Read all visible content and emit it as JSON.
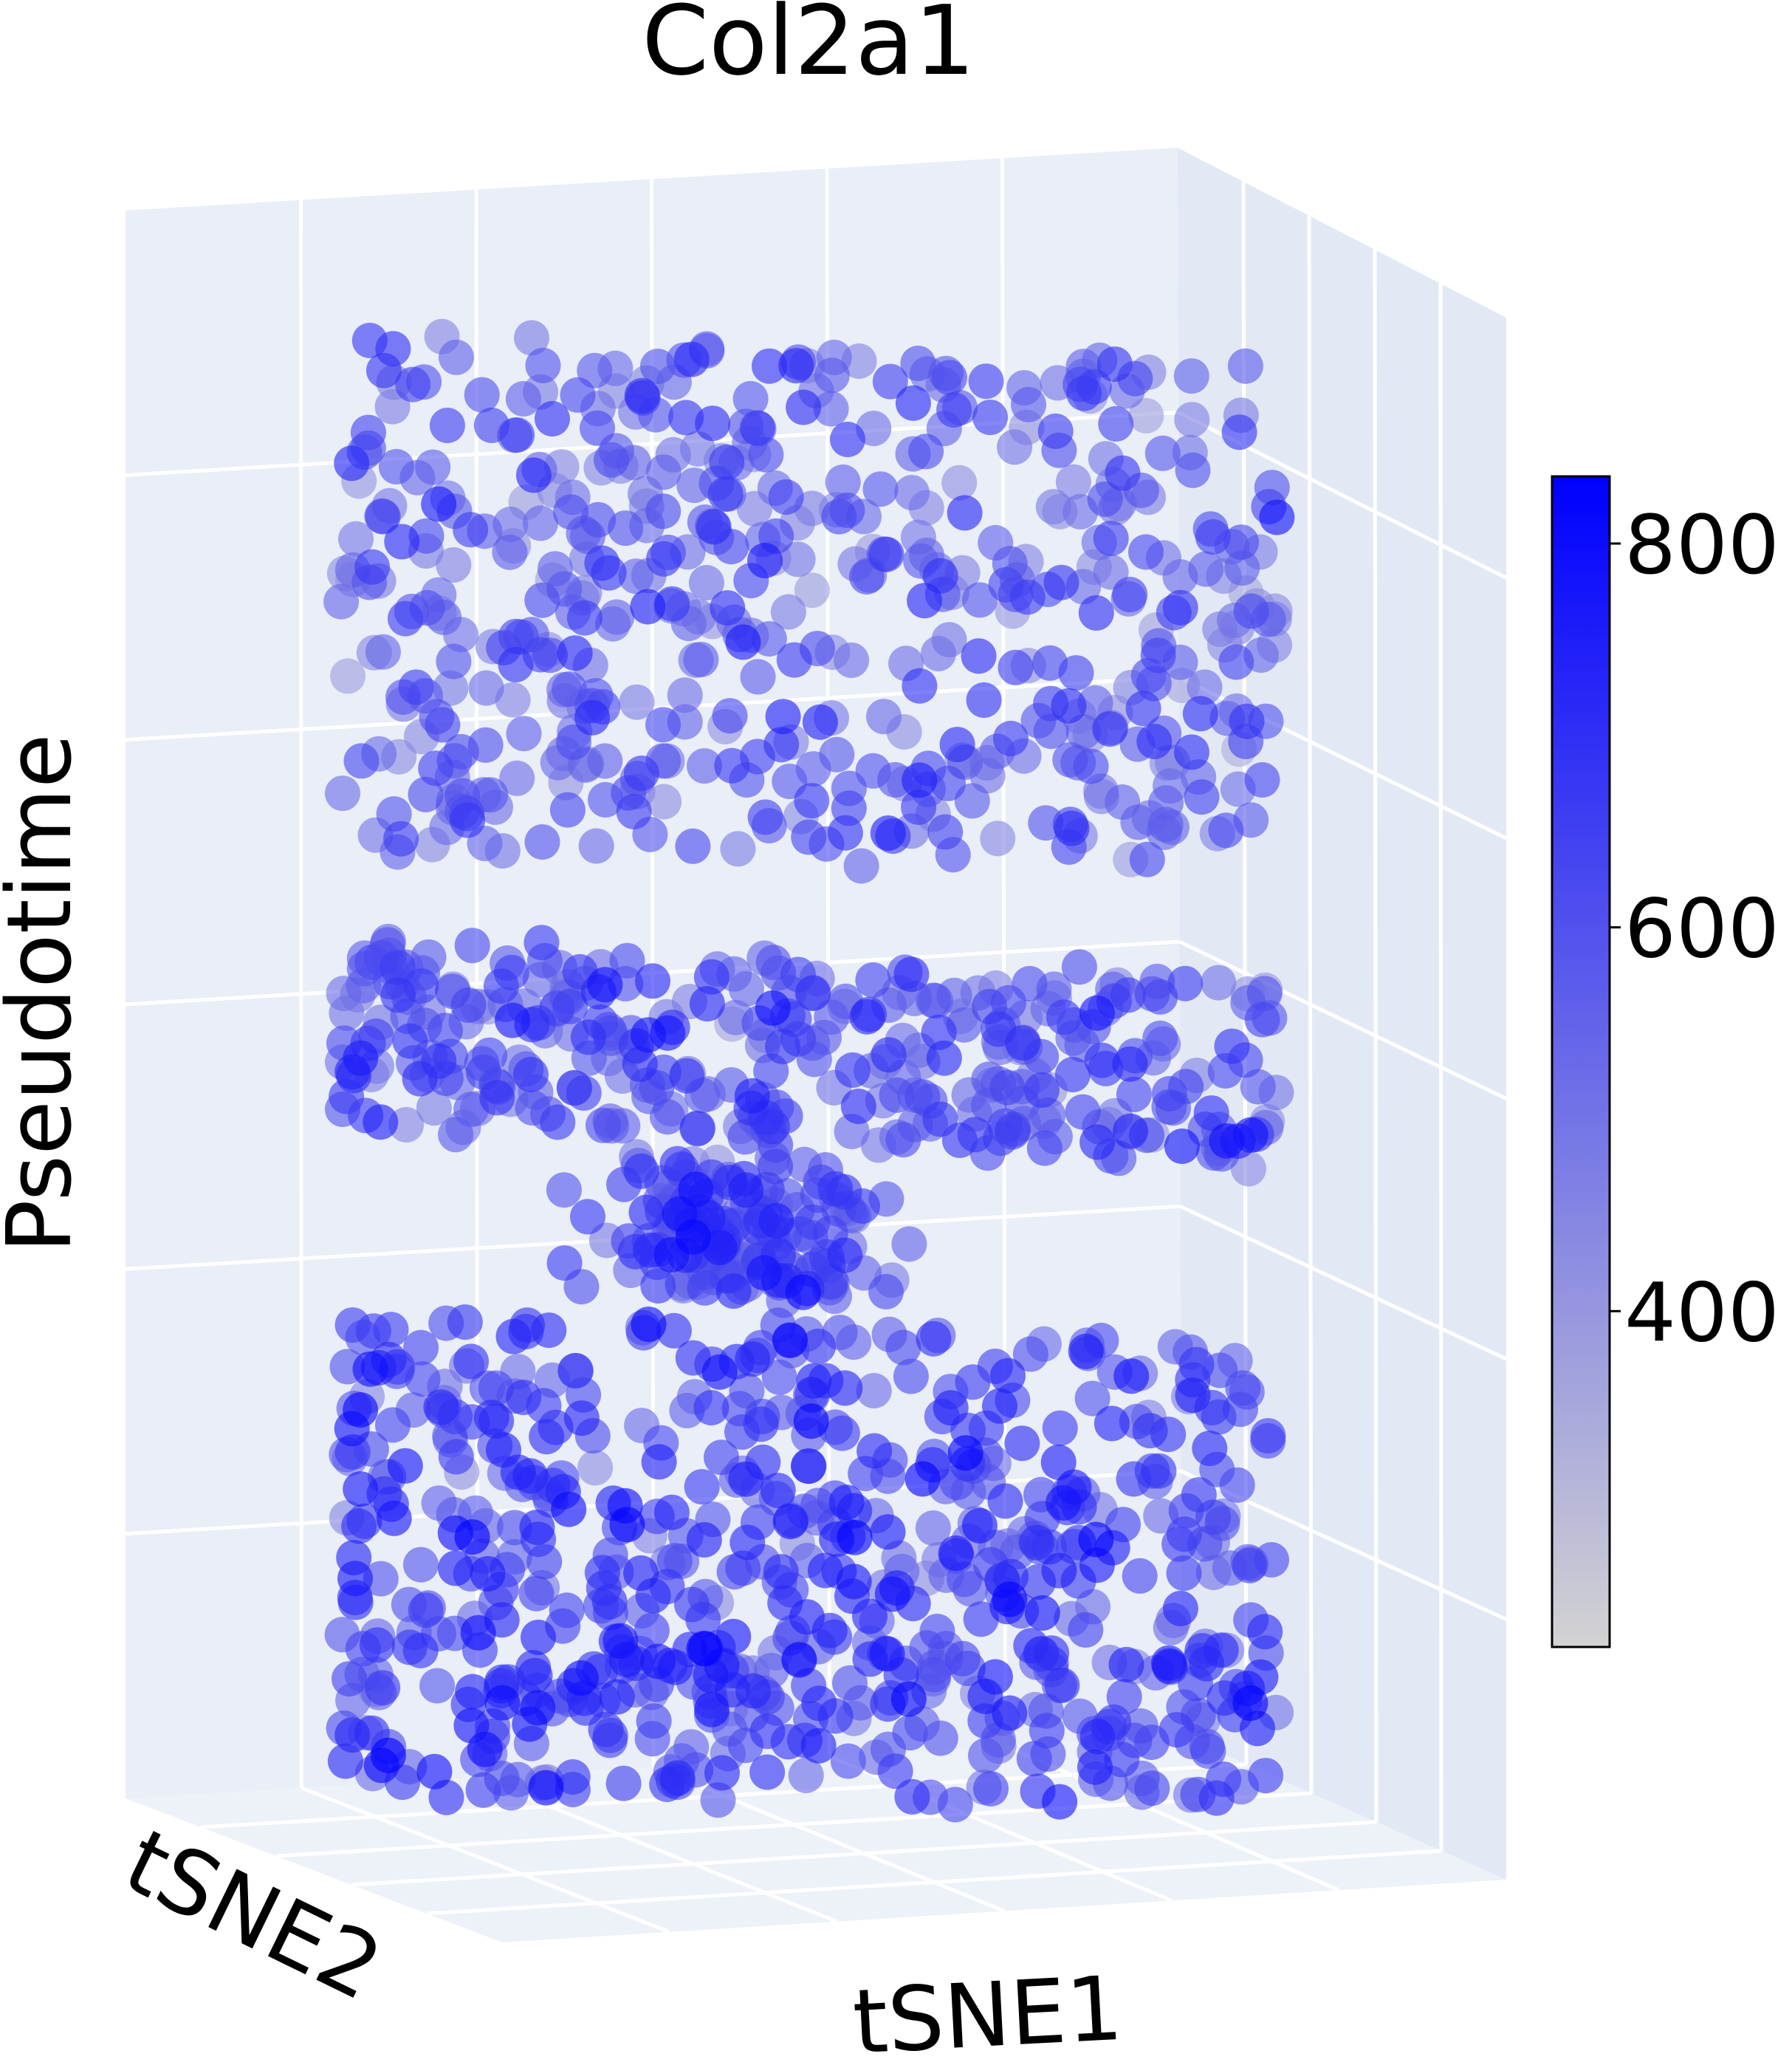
{
  "chart_data": {
    "type": "scatter",
    "projection": "3d",
    "title": "Col2a1",
    "xlabel": "tSNE1",
    "ylabel": "tSNE2",
    "zlabel": "Pseudotime",
    "grid": true,
    "colorbar": {
      "ticks": [
        400,
        600,
        800
      ],
      "range": [
        225,
        835
      ],
      "colors": [
        "#d3d3d3",
        "#0000ff"
      ],
      "placement": "right"
    },
    "layers": [
      {
        "pseudotime_level": "top",
        "height_range": [
          0.62,
          0.96
        ],
        "point_count": 520,
        "mean_expression": 560
      },
      {
        "pseudotime_level": "upper-middle",
        "height_range": [
          0.44,
          0.56
        ],
        "point_count": 330,
        "mean_expression": 590
      },
      {
        "pseudotime_level": "lower-middle",
        "height_range": [
          0.33,
          0.42
        ],
        "point_count": 150,
        "mean_expression": 600
      },
      {
        "pseudotime_level": "bottom",
        "height_range": [
          0.0,
          0.31
        ],
        "point_count": 640,
        "mean_expression": 640
      }
    ]
  }
}
